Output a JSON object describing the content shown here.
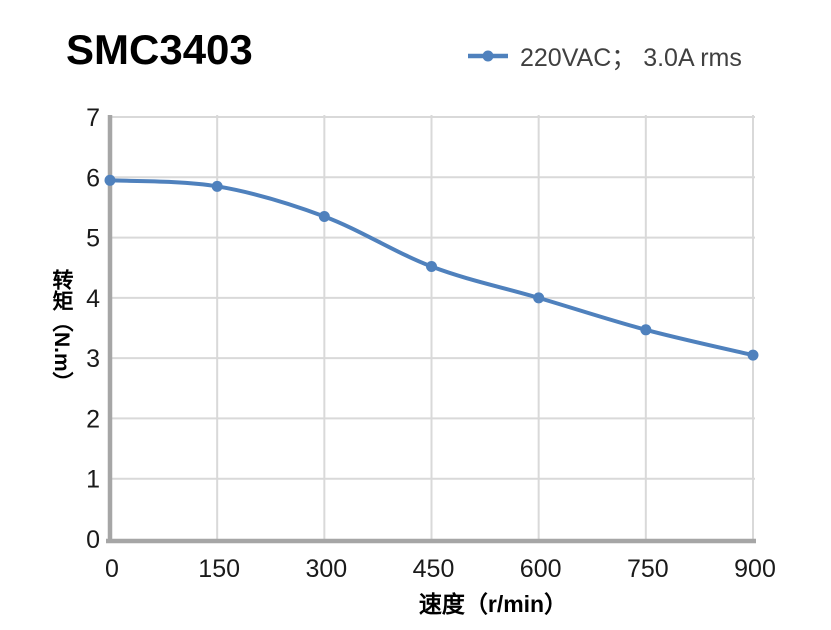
{
  "page": {
    "background": "#ffffff"
  },
  "header": {
    "title": "SMC3403",
    "legend": {
      "label": "220VAC； 3.0A rms",
      "marker_color": "#4F81BD"
    }
  },
  "chart_data": {
    "type": "line",
    "title": "SMC3403",
    "xlabel": "速度（r/min）",
    "ylabel": "转矩（N.m）",
    "xlim": [
      0,
      900
    ],
    "ylim": [
      0,
      7
    ],
    "xticks": [
      0,
      150,
      300,
      450,
      600,
      750,
      900
    ],
    "yticks": [
      0,
      1,
      2,
      3,
      4,
      5,
      6,
      7
    ],
    "grid": true,
    "legend_position": "top-right",
    "series": [
      {
        "name": "220VAC； 3.0A rms",
        "x": [
          0,
          150,
          300,
          450,
          600,
          750,
          900
        ],
        "values": [
          5.95,
          5.85,
          5.35,
          4.52,
          4.0,
          3.47,
          3.05
        ],
        "color": "#4F81BD",
        "marker": "circle",
        "smooth": true
      }
    ],
    "colors": {
      "gridline": "#D9D9D9",
      "axis": "#A6A6A6",
      "tick_label": "#1A1A1A"
    }
  }
}
